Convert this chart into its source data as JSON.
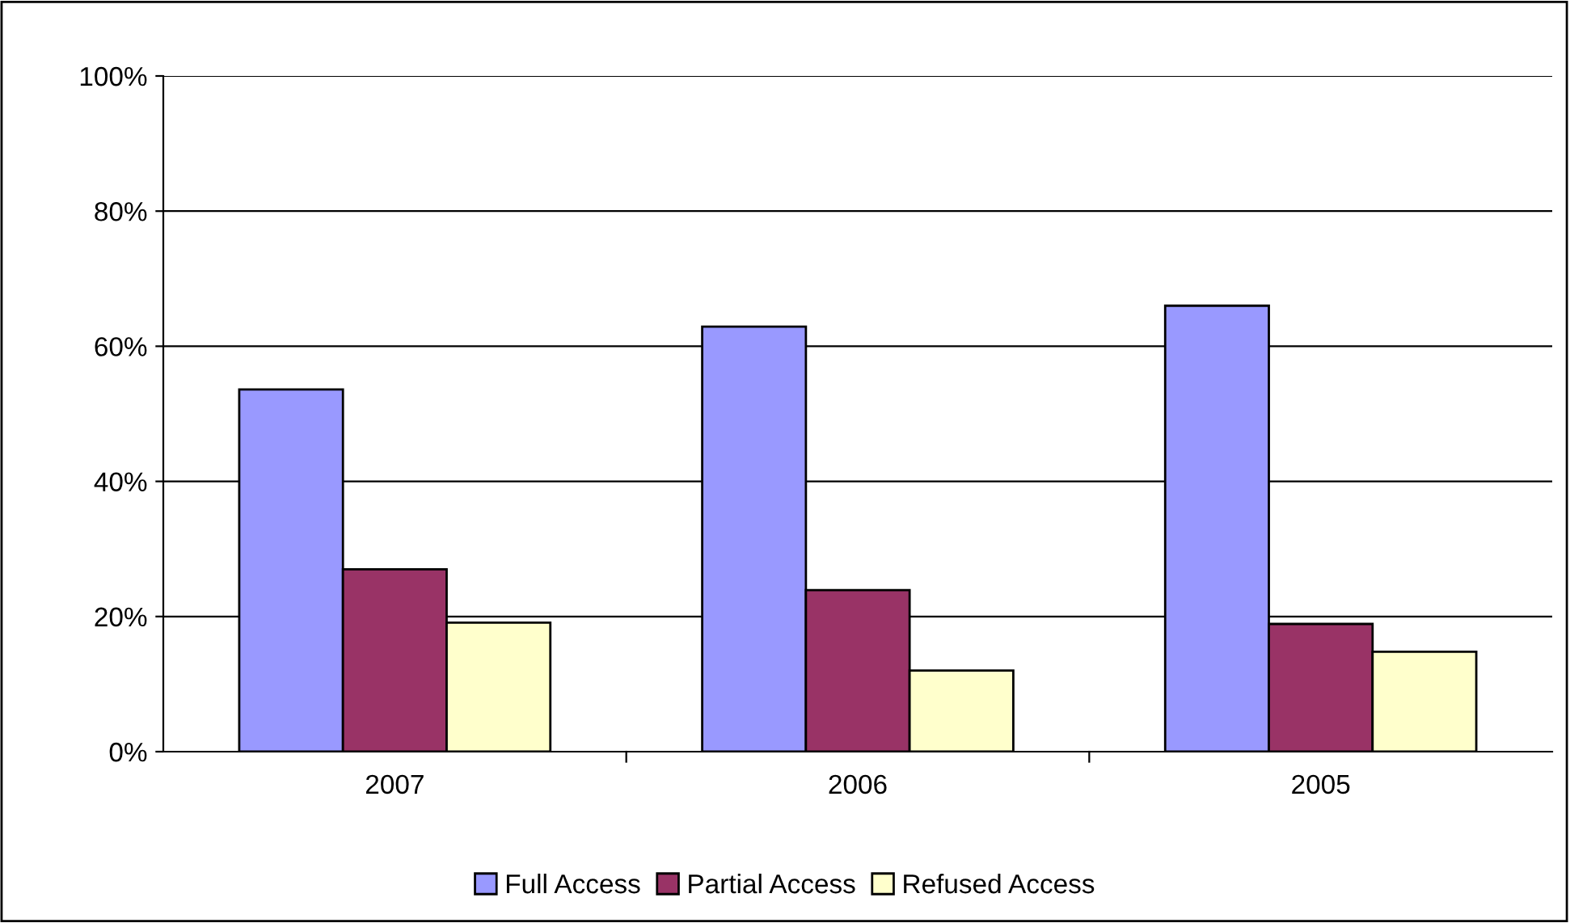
{
  "chart_data": {
    "type": "bar",
    "categories": [
      "2007",
      "2006",
      "2005"
    ],
    "series": [
      {
        "name": "Full Access",
        "color": "#9999ff",
        "values": [
          53.6,
          62.9,
          66.0
        ]
      },
      {
        "name": "Partial Access",
        "color": "#993366",
        "values": [
          27.0,
          23.9,
          18.9
        ]
      },
      {
        "name": "Refused Access",
        "color": "#ffffcc",
        "values": [
          19.1,
          12.0,
          14.8
        ]
      }
    ],
    "ylim": [
      0,
      100
    ],
    "yticks": [
      {
        "value": 0,
        "label": "0%"
      },
      {
        "value": 20,
        "label": "20%"
      },
      {
        "value": 40,
        "label": "40%"
      },
      {
        "value": 60,
        "label": "60%"
      },
      {
        "value": 80,
        "label": "80%"
      },
      {
        "value": 100,
        "label": "100%"
      }
    ],
    "grid": "y",
    "legend": "bottom"
  }
}
